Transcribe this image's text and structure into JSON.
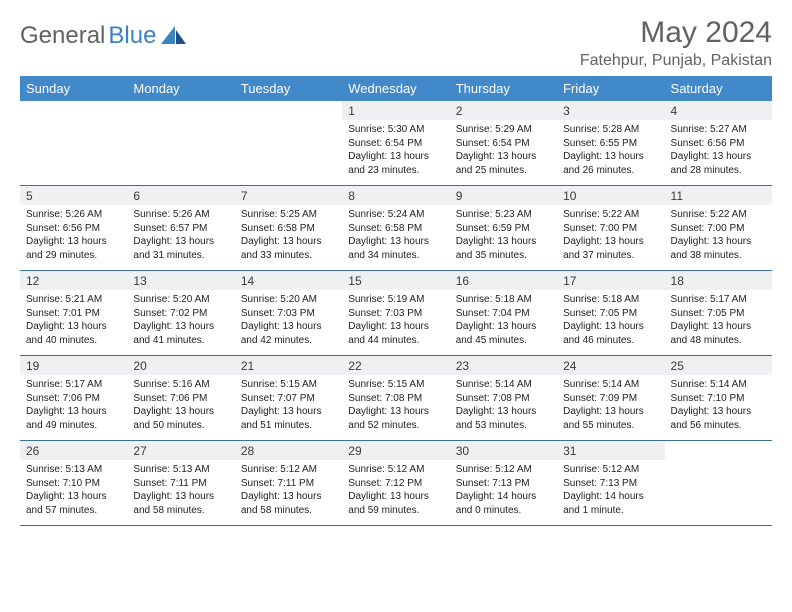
{
  "logo": {
    "text1": "General",
    "text2": "Blue"
  },
  "title": "May 2024",
  "location": "Fatehpur, Punjab, Pakistan",
  "colors": {
    "header_bg": "#4189c8",
    "header_fg": "#ffffff",
    "daynum_bg": "#eef0f2",
    "border": "#3b6fa0",
    "logo_gray": "#5f6367",
    "logo_blue": "#3b82c3"
  },
  "font": {
    "title_size": 30,
    "location_size": 16,
    "header_size": 13,
    "daynum_size": 12,
    "body_size": 10
  },
  "days": [
    "Sunday",
    "Monday",
    "Tuesday",
    "Wednesday",
    "Thursday",
    "Friday",
    "Saturday"
  ],
  "weeks": [
    [
      {
        "n": "",
        "s": "",
        "t": "",
        "d": "",
        "empty": true
      },
      {
        "n": "",
        "s": "",
        "t": "",
        "d": "",
        "empty": true
      },
      {
        "n": "",
        "s": "",
        "t": "",
        "d": "",
        "empty": true
      },
      {
        "n": "1",
        "s": "Sunrise: 5:30 AM",
        "t": "Sunset: 6:54 PM",
        "d": "Daylight: 13 hours and 23 minutes."
      },
      {
        "n": "2",
        "s": "Sunrise: 5:29 AM",
        "t": "Sunset: 6:54 PM",
        "d": "Daylight: 13 hours and 25 minutes."
      },
      {
        "n": "3",
        "s": "Sunrise: 5:28 AM",
        "t": "Sunset: 6:55 PM",
        "d": "Daylight: 13 hours and 26 minutes."
      },
      {
        "n": "4",
        "s": "Sunrise: 5:27 AM",
        "t": "Sunset: 6:56 PM",
        "d": "Daylight: 13 hours and 28 minutes."
      }
    ],
    [
      {
        "n": "5",
        "s": "Sunrise: 5:26 AM",
        "t": "Sunset: 6:56 PM",
        "d": "Daylight: 13 hours and 29 minutes."
      },
      {
        "n": "6",
        "s": "Sunrise: 5:26 AM",
        "t": "Sunset: 6:57 PM",
        "d": "Daylight: 13 hours and 31 minutes."
      },
      {
        "n": "7",
        "s": "Sunrise: 5:25 AM",
        "t": "Sunset: 6:58 PM",
        "d": "Daylight: 13 hours and 33 minutes."
      },
      {
        "n": "8",
        "s": "Sunrise: 5:24 AM",
        "t": "Sunset: 6:58 PM",
        "d": "Daylight: 13 hours and 34 minutes."
      },
      {
        "n": "9",
        "s": "Sunrise: 5:23 AM",
        "t": "Sunset: 6:59 PM",
        "d": "Daylight: 13 hours and 35 minutes."
      },
      {
        "n": "10",
        "s": "Sunrise: 5:22 AM",
        "t": "Sunset: 7:00 PM",
        "d": "Daylight: 13 hours and 37 minutes."
      },
      {
        "n": "11",
        "s": "Sunrise: 5:22 AM",
        "t": "Sunset: 7:00 PM",
        "d": "Daylight: 13 hours and 38 minutes."
      }
    ],
    [
      {
        "n": "12",
        "s": "Sunrise: 5:21 AM",
        "t": "Sunset: 7:01 PM",
        "d": "Daylight: 13 hours and 40 minutes."
      },
      {
        "n": "13",
        "s": "Sunrise: 5:20 AM",
        "t": "Sunset: 7:02 PM",
        "d": "Daylight: 13 hours and 41 minutes."
      },
      {
        "n": "14",
        "s": "Sunrise: 5:20 AM",
        "t": "Sunset: 7:03 PM",
        "d": "Daylight: 13 hours and 42 minutes."
      },
      {
        "n": "15",
        "s": "Sunrise: 5:19 AM",
        "t": "Sunset: 7:03 PM",
        "d": "Daylight: 13 hours and 44 minutes."
      },
      {
        "n": "16",
        "s": "Sunrise: 5:18 AM",
        "t": "Sunset: 7:04 PM",
        "d": "Daylight: 13 hours and 45 minutes."
      },
      {
        "n": "17",
        "s": "Sunrise: 5:18 AM",
        "t": "Sunset: 7:05 PM",
        "d": "Daylight: 13 hours and 46 minutes."
      },
      {
        "n": "18",
        "s": "Sunrise: 5:17 AM",
        "t": "Sunset: 7:05 PM",
        "d": "Daylight: 13 hours and 48 minutes."
      }
    ],
    [
      {
        "n": "19",
        "s": "Sunrise: 5:17 AM",
        "t": "Sunset: 7:06 PM",
        "d": "Daylight: 13 hours and 49 minutes."
      },
      {
        "n": "20",
        "s": "Sunrise: 5:16 AM",
        "t": "Sunset: 7:06 PM",
        "d": "Daylight: 13 hours and 50 minutes."
      },
      {
        "n": "21",
        "s": "Sunrise: 5:15 AM",
        "t": "Sunset: 7:07 PM",
        "d": "Daylight: 13 hours and 51 minutes."
      },
      {
        "n": "22",
        "s": "Sunrise: 5:15 AM",
        "t": "Sunset: 7:08 PM",
        "d": "Daylight: 13 hours and 52 minutes."
      },
      {
        "n": "23",
        "s": "Sunrise: 5:14 AM",
        "t": "Sunset: 7:08 PM",
        "d": "Daylight: 13 hours and 53 minutes."
      },
      {
        "n": "24",
        "s": "Sunrise: 5:14 AM",
        "t": "Sunset: 7:09 PM",
        "d": "Daylight: 13 hours and 55 minutes."
      },
      {
        "n": "25",
        "s": "Sunrise: 5:14 AM",
        "t": "Sunset: 7:10 PM",
        "d": "Daylight: 13 hours and 56 minutes."
      }
    ],
    [
      {
        "n": "26",
        "s": "Sunrise: 5:13 AM",
        "t": "Sunset: 7:10 PM",
        "d": "Daylight: 13 hours and 57 minutes."
      },
      {
        "n": "27",
        "s": "Sunrise: 5:13 AM",
        "t": "Sunset: 7:11 PM",
        "d": "Daylight: 13 hours and 58 minutes."
      },
      {
        "n": "28",
        "s": "Sunrise: 5:12 AM",
        "t": "Sunset: 7:11 PM",
        "d": "Daylight: 13 hours and 58 minutes."
      },
      {
        "n": "29",
        "s": "Sunrise: 5:12 AM",
        "t": "Sunset: 7:12 PM",
        "d": "Daylight: 13 hours and 59 minutes."
      },
      {
        "n": "30",
        "s": "Sunrise: 5:12 AM",
        "t": "Sunset: 7:13 PM",
        "d": "Daylight: 14 hours and 0 minutes."
      },
      {
        "n": "31",
        "s": "Sunrise: 5:12 AM",
        "t": "Sunset: 7:13 PM",
        "d": "Daylight: 14 hours and 1 minute."
      },
      {
        "n": "",
        "s": "",
        "t": "",
        "d": "",
        "empty": true
      }
    ]
  ]
}
